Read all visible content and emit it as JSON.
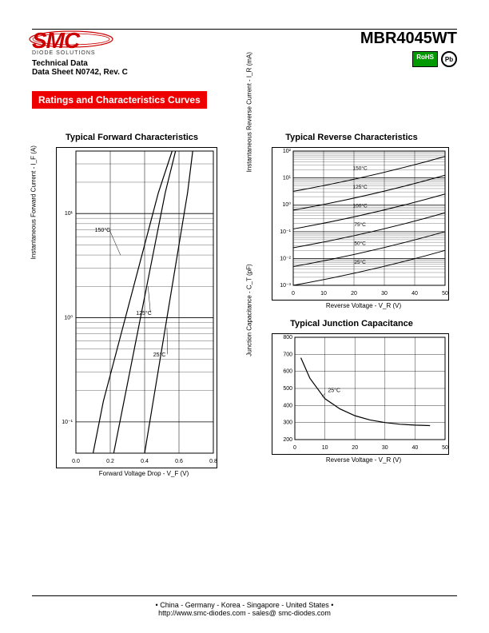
{
  "header": {
    "logo_text": "SMC",
    "logo_subtitle": "DIODE SOLUTIONS",
    "part_number": "MBR4045WT",
    "tech_data": "Technical Data",
    "datasheet": "Data Sheet N0742, Rev. C",
    "rohs": "RoHS",
    "pb": "Pb"
  },
  "section_title": "Ratings and Characteristics Curves",
  "chart_forward": {
    "title": "Typical Forward Characteristics",
    "xlabel": "Forward Voltage Drop - V_F (V)",
    "ylabel": "Instantaneous Forward Current - I_F (A)",
    "xticks": [
      "0.0",
      "0.2",
      "0.4",
      "0.6",
      "0.8"
    ],
    "yticks": [
      "10⁻¹",
      "10⁰",
      "10¹"
    ],
    "xlim": [
      0,
      0.8
    ],
    "ylim_log": [
      -1.3,
      1.6
    ],
    "title_fontsize": 11,
    "label_fontsize": 8,
    "tick_fontsize": 7,
    "curve_labels": [
      "150°C",
      "125°C",
      "25°C"
    ],
    "background_color": "#ffffff",
    "grid_color": "#000000",
    "line_color": "#000000",
    "curves": {
      "25C": [
        [
          0.4,
          -1.3
        ],
        [
          0.45,
          -0.8
        ],
        [
          0.5,
          -0.3
        ],
        [
          0.55,
          0.2
        ],
        [
          0.6,
          0.7
        ],
        [
          0.65,
          1.2
        ],
        [
          0.68,
          1.6
        ]
      ],
      "125C": [
        [
          0.22,
          -1.3
        ],
        [
          0.28,
          -0.8
        ],
        [
          0.34,
          -0.3
        ],
        [
          0.4,
          0.2
        ],
        [
          0.46,
          0.7
        ],
        [
          0.52,
          1.2
        ],
        [
          0.58,
          1.6
        ]
      ],
      "150C": [
        [
          0.1,
          -1.3
        ],
        [
          0.16,
          -0.8
        ],
        [
          0.24,
          -0.3
        ],
        [
          0.32,
          0.2
        ],
        [
          0.4,
          0.7
        ],
        [
          0.48,
          1.2
        ],
        [
          0.56,
          1.6
        ]
      ]
    }
  },
  "chart_reverse": {
    "title": "Typical Reverse Characteristics",
    "xlabel": "Reverse Voltage - V_R (V)",
    "ylabel": "Instantaneous Reverse Current - I_R (mA)",
    "xticks": [
      "0",
      "10",
      "20",
      "30",
      "40",
      "50"
    ],
    "yticks": [
      "10⁻³",
      "10⁻²",
      "10⁻¹",
      "10⁰",
      "10¹",
      "10²"
    ],
    "xlim": [
      0,
      50
    ],
    "ylim_log": [
      -3,
      2
    ],
    "title_fontsize": 11,
    "label_fontsize": 8,
    "tick_fontsize": 7,
    "curve_labels": [
      "25°C",
      "50°C",
      "75°C",
      "100°C",
      "125°C",
      "150°C"
    ],
    "background_color": "#ffffff",
    "grid_color": "#000000",
    "line_color": "#000000",
    "curves": {
      "25C": [
        [
          0,
          -3.0
        ],
        [
          50,
          -1.7
        ]
      ],
      "50C": [
        [
          0,
          -2.3
        ],
        [
          50,
          -1.0
        ]
      ],
      "75C": [
        [
          0,
          -1.6
        ],
        [
          50,
          -0.3
        ]
      ],
      "100C": [
        [
          0,
          -0.9
        ],
        [
          50,
          0.4
        ]
      ],
      "125C": [
        [
          0,
          -0.2
        ],
        [
          50,
          1.1
        ]
      ],
      "150C": [
        [
          0,
          0.5
        ],
        [
          50,
          1.8
        ]
      ]
    }
  },
  "chart_capacitance": {
    "title": "Typical Junction Capacitance",
    "xlabel": "Reverse Voltage - V_R (V)",
    "ylabel": "Junction Capacitance - C_T (pF)",
    "xticks": [
      "0",
      "10",
      "20",
      "30",
      "40",
      "50"
    ],
    "yticks": [
      "200",
      "300",
      "400",
      "500",
      "600",
      "700",
      "800"
    ],
    "xlim": [
      0,
      50
    ],
    "ylim": [
      200,
      800
    ],
    "title_fontsize": 11,
    "label_fontsize": 8,
    "tick_fontsize": 7,
    "curve_label": "25°C",
    "background_color": "#ffffff",
    "grid_color": "#000000",
    "line_color": "#000000",
    "curve": [
      [
        2,
        680
      ],
      [
        5,
        560
      ],
      [
        10,
        440
      ],
      [
        15,
        380
      ],
      [
        20,
        340
      ],
      [
        25,
        315
      ],
      [
        30,
        300
      ],
      [
        35,
        290
      ],
      [
        40,
        285
      ],
      [
        45,
        282
      ]
    ]
  },
  "footer": {
    "countries": "• China  -  Germany  -  Korea  -  Singapore  -  United States •",
    "contact": "http://www.smc-diodes.com  -  sales@ smc-diodes.com"
  }
}
